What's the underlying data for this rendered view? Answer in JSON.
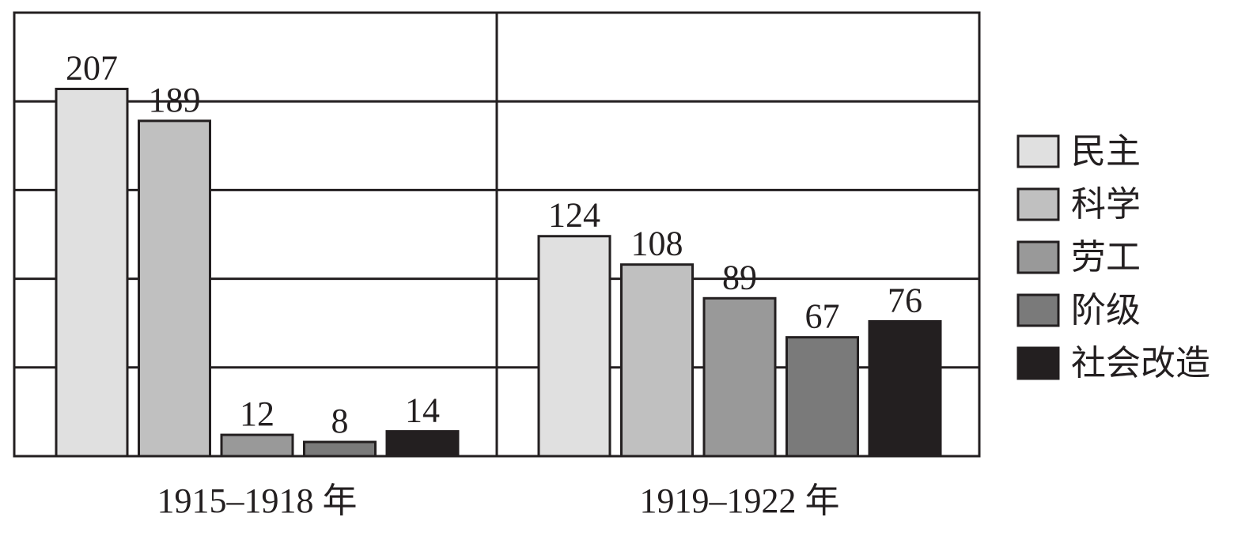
{
  "chart_data": {
    "type": "grouped_bar",
    "categories": [
      "1915–1918 年",
      "1919–1922 年"
    ],
    "series": [
      {
        "name": "民主",
        "color": "#e0e0e0",
        "values": [
          207,
          124
        ]
      },
      {
        "name": "科学",
        "color": "#c0c0c0",
        "values": [
          189,
          108
        ]
      },
      {
        "name": "劳工",
        "color": "#999999",
        "values": [
          12,
          89
        ]
      },
      {
        "name": "阶级",
        "color": "#7a7a7a",
        "values": [
          8,
          67
        ]
      },
      {
        "name": "社会改造",
        "color": "#231f20",
        "values": [
          14,
          76
        ]
      }
    ],
    "ylim": [
      0,
      250
    ],
    "yticks": [
      0,
      50,
      100,
      150,
      200,
      250
    ],
    "grid": true,
    "legend": "right"
  }
}
